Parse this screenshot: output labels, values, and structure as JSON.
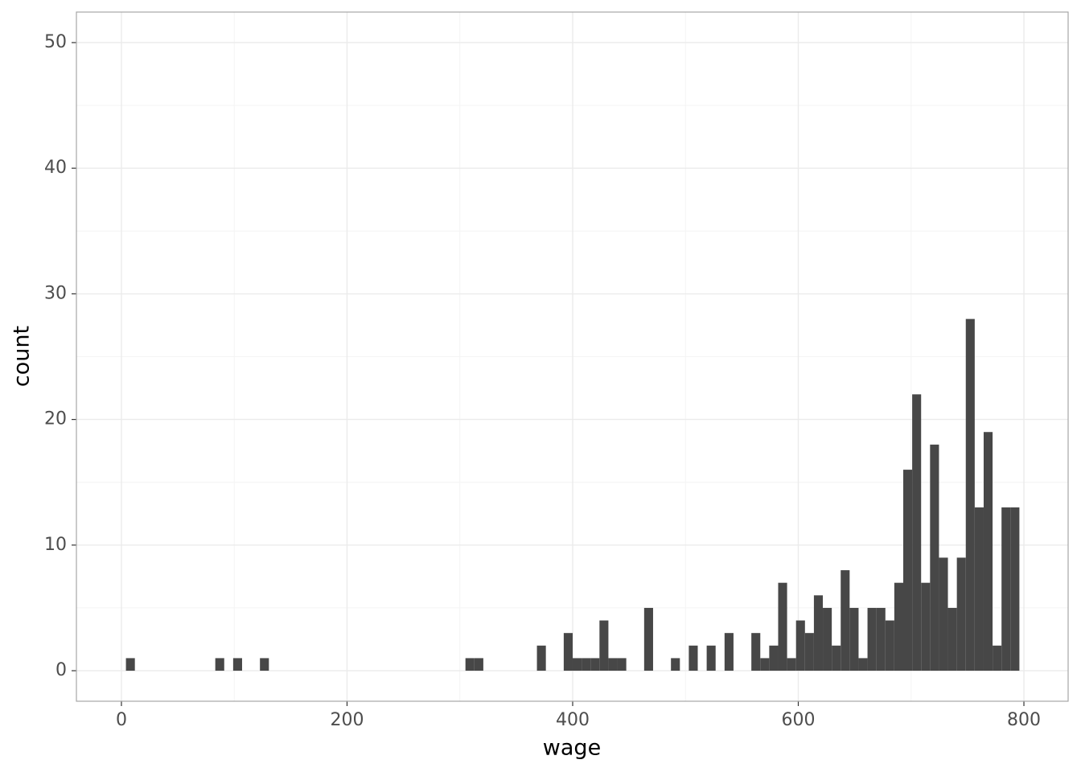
{
  "chart_data": {
    "type": "histogram",
    "x_label": "wage",
    "y_label": "count",
    "bins": [
      4,
      11.92,
      19.84,
      27.76,
      35.68,
      43.6,
      51.52,
      59.44,
      67.36,
      75.28,
      83.2,
      91.12,
      99.04,
      106.96,
      114.88,
      122.8,
      130.72,
      138.64,
      146.56,
      154.48,
      162.4,
      170.32,
      178.24,
      186.16,
      194.08,
      202,
      209.92,
      217.84,
      225.76,
      233.68,
      241.6,
      249.52,
      257.44,
      265.36,
      273.28,
      281.2,
      289.12,
      297.04,
      304.96,
      312.88,
      320.8,
      328.72,
      336.64,
      344.56,
      352.48,
      360.4,
      368.32,
      376.24,
      384.16,
      392.08,
      400,
      407.92,
      415.84,
      423.76,
      431.68,
      439.6,
      447.52,
      455.44,
      463.36,
      471.28,
      479.2,
      487.12,
      495.04,
      502.96,
      510.88,
      518.8,
      526.72,
      534.64,
      542.56,
      550.48,
      558.4,
      566.32,
      574.24,
      582.16,
      590.08,
      598,
      605.92,
      613.84,
      621.76,
      629.68,
      637.6,
      645.52,
      653.44,
      661.36,
      669.28,
      677.2,
      685.12,
      693.04,
      700.96,
      708.88,
      716.8,
      724.72,
      732.64,
      740.56,
      748.48,
      756.4,
      764.32,
      772.24,
      780.16,
      788.08,
      796
    ],
    "counts": [
      1,
      0,
      0,
      0,
      0,
      0,
      0,
      0,
      0,
      0,
      1,
      0,
      1,
      0,
      0,
      1,
      0,
      0,
      0,
      0,
      0,
      0,
      0,
      0,
      0,
      0,
      0,
      0,
      0,
      0,
      0,
      0,
      0,
      0,
      0,
      0,
      0,
      0,
      1,
      1,
      0,
      0,
      0,
      0,
      0,
      0,
      2,
      0,
      0,
      3,
      1,
      1,
      1,
      4,
      1,
      1,
      0,
      0,
      5,
      0,
      0,
      1,
      0,
      2,
      0,
      2,
      0,
      3,
      0,
      0,
      3,
      1,
      2,
      7,
      1,
      4,
      3,
      6,
      5,
      2,
      8,
      5,
      1,
      5,
      5,
      4,
      7,
      16,
      22,
      7,
      18,
      9,
      5,
      9,
      28,
      13,
      19,
      2,
      13,
      13
    ],
    "color": "#474747",
    "xlim": [
      -39.9,
      839.2
    ],
    "xticks": [
      0,
      200,
      400,
      600,
      800
    ],
    "ylim": [
      -2.43,
      52.43
    ],
    "yticks": [
      0,
      10,
      20,
      30,
      40,
      50
    ],
    "grid": true
  }
}
